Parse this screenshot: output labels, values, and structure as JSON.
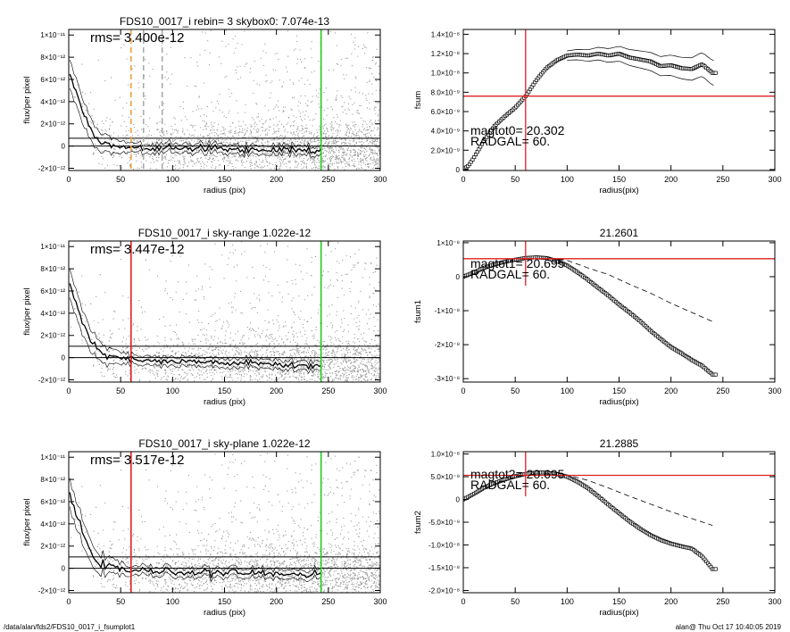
{
  "footer": {
    "path": "/data/alan/fds2/FDS10_0017_i_fsumplot1",
    "stamp": "alan@  Thu Oct 17 10:40:05 2019"
  },
  "chart_data": [
    {
      "id": "profile-rebin",
      "type": "scatter",
      "title": "FDS10_0017_i rebin= 3    skybox0:  7.074e-13",
      "annotation": "rms= 3.400e-12",
      "xlabel": "radius (pix)",
      "ylabel": "flux/per pixel",
      "xlim": [
        0,
        300
      ],
      "ylim": [
        -2.2e-12,
        1.05e-11
      ],
      "xticks": [
        0,
        50,
        100,
        150,
        200,
        250,
        300
      ],
      "xtick_labels": [
        "0",
        "50",
        "100",
        "150",
        "200",
        "250",
        "300"
      ],
      "yticks": [
        -2e-12,
        0,
        2e-12,
        4e-12,
        6e-12,
        8e-12,
        1e-11
      ],
      "ytick_labels": [
        "-2×10⁻¹²",
        "0",
        "2×10⁻¹²",
        "4×10⁻¹²",
        "6×10⁻¹²",
        "8×10⁻¹²",
        "1×10⁻¹¹"
      ],
      "hlines": [
        0,
        7.074e-13
      ],
      "vlines": [
        {
          "x": 60,
          "color": "#f0a040",
          "style": "dashed"
        },
        {
          "x": 72,
          "color": "#aaaaaa",
          "style": "dashed"
        },
        {
          "x": 90,
          "color": "#aaaaaa",
          "style": "dashed"
        },
        {
          "x": 243,
          "color": "#22cc22",
          "style": "solid"
        }
      ],
      "profile": {
        "x": [
          1,
          3,
          5,
          7,
          9,
          11,
          13,
          15,
          17,
          19,
          21,
          23,
          25,
          27,
          30,
          35,
          40,
          45,
          50,
          55,
          60,
          70,
          80,
          100,
          130,
          160,
          200,
          240
        ],
        "y": [
          6.5e-12,
          6e-12,
          5.5e-12,
          4.8e-12,
          4.4e-12,
          4e-12,
          3.2e-12,
          2.8e-12,
          2.4e-12,
          2e-12,
          1.6e-12,
          1.3e-12,
          1e-12,
          8e-13,
          5e-13,
          2e-13,
          1e-13,
          0,
          -1e-13,
          0,
          -1e-13,
          -2e-13,
          -2e-13,
          -2e-13,
          -2e-13,
          -3e-13,
          -3e-13,
          -4e-13
        ]
      }
    },
    {
      "id": "profile-sky-range",
      "type": "scatter",
      "title": "FDS10_0017_i sky-range  1.022e-12",
      "annotation": "rms= 3.447e-12",
      "xlabel": "radius (pix)",
      "ylabel": "flux/per pixel",
      "xlim": [
        0,
        300
      ],
      "ylim": [
        -2.2e-12,
        1.05e-11
      ],
      "xticks": [
        0,
        50,
        100,
        150,
        200,
        250,
        300
      ],
      "xtick_labels": [
        "0",
        "50",
        "100",
        "150",
        "200",
        "250",
        "300"
      ],
      "yticks": [
        -2e-12,
        0,
        2e-12,
        4e-12,
        6e-12,
        8e-12,
        1e-11
      ],
      "ytick_labels": [
        "-2×10⁻¹²",
        "0",
        "2×10⁻¹²",
        "4×10⁻¹²",
        "6×10⁻¹²",
        "8×10⁻¹²",
        "1×10⁻¹¹"
      ],
      "hlines": [
        0,
        1.022e-12
      ],
      "vlines": [
        {
          "x": 60,
          "color": "#e02020",
          "style": "solid"
        },
        {
          "x": 243,
          "color": "#22cc22",
          "style": "solid"
        }
      ],
      "profile": {
        "x": [
          1,
          3,
          5,
          7,
          9,
          11,
          13,
          15,
          17,
          19,
          21,
          23,
          25,
          27,
          30,
          35,
          40,
          45,
          50,
          55,
          60,
          70,
          80,
          100,
          130,
          160,
          200,
          240
        ],
        "y": [
          6.5e-12,
          6e-12,
          5.5e-12,
          4.8e-12,
          4.4e-12,
          4e-12,
          3.2e-12,
          2.8e-12,
          2.4e-12,
          2e-12,
          1.6e-12,
          1.3e-12,
          1e-12,
          8e-13,
          5e-13,
          2e-13,
          1e-13,
          0,
          -1e-13,
          -1e-13,
          -2e-13,
          -3e-13,
          -3e-13,
          -4e-13,
          -4e-13,
          -5e-13,
          -6e-13,
          -8e-13
        ]
      }
    },
    {
      "id": "profile-sky-plane",
      "type": "scatter",
      "title": "FDS10_0017_i sky-plane  1.022e-12",
      "annotation": "rms= 3.517e-12",
      "xlabel": "radius (pix)",
      "ylabel": "flux/per pixel",
      "xlim": [
        0,
        300
      ],
      "ylim": [
        -2.2e-12,
        1.05e-11
      ],
      "xticks": [
        0,
        50,
        100,
        150,
        200,
        250,
        300
      ],
      "xtick_labels": [
        "0",
        "50",
        "100",
        "150",
        "200",
        "250",
        "300"
      ],
      "yticks": [
        -2e-12,
        0,
        2e-12,
        4e-12,
        6e-12,
        8e-12,
        1e-11
      ],
      "ytick_labels": [
        "-2×10⁻¹²",
        "0",
        "2×10⁻¹²",
        "4×10⁻¹²",
        "6×10⁻¹²",
        "8×10⁻¹²",
        "1×10⁻¹¹"
      ],
      "hlines": [
        0,
        1.022e-12
      ],
      "vlines": [
        {
          "x": 60,
          "color": "#e02020",
          "style": "solid"
        },
        {
          "x": 243,
          "color": "#22cc22",
          "style": "solid"
        }
      ],
      "profile": {
        "x": [
          1,
          3,
          5,
          7,
          9,
          11,
          13,
          15,
          17,
          19,
          21,
          23,
          25,
          27,
          30,
          35,
          40,
          45,
          50,
          55,
          60,
          70,
          80,
          100,
          130,
          160,
          200,
          240
        ],
        "y": [
          6.5e-12,
          6e-12,
          5.5e-12,
          4.8e-12,
          4.4e-12,
          4e-12,
          3.2e-12,
          2.8e-12,
          2.4e-12,
          2e-12,
          1.6e-12,
          1.3e-12,
          1e-12,
          8e-13,
          5e-13,
          2e-13,
          1e-13,
          0,
          -1e-13,
          -1e-13,
          -2e-13,
          -2e-13,
          -3e-13,
          -3e-13,
          -4e-13,
          -4e-13,
          -5e-13,
          -5e-13
        ]
      }
    },
    {
      "id": "curve-fsum",
      "type": "line",
      "title": "",
      "annotations": [
        "magtot0=  20.302",
        "RADGAL=     60."
      ],
      "xlabel": "radius(pix)",
      "ylabel": "fsum",
      "xlim": [
        0,
        300
      ],
      "ylim": [
        -1e-10,
        1.45e-08
      ],
      "xticks": [
        0,
        50,
        100,
        150,
        200,
        250,
        300
      ],
      "xtick_labels": [
        "0",
        "50",
        "100",
        "150",
        "200",
        "250",
        "300"
      ],
      "yticks": [
        0,
        2e-09,
        4e-09,
        6e-09,
        8e-09,
        1e-08,
        1.2e-08,
        1.4e-08
      ],
      "ytick_labels": [
        "0",
        "2.0×10⁻⁹",
        "4.0×10⁻⁹",
        "6.0×10⁻⁹",
        "8.0×10⁻⁹",
        "1.0×10⁻⁸",
        "1.2×10⁻⁸",
        "1.4×10⁻⁸"
      ],
      "hline": 7.6e-09,
      "vline": 60,
      "curve": {
        "x": [
          0,
          5,
          10,
          20,
          30,
          40,
          50,
          60,
          70,
          80,
          90,
          100,
          110,
          120,
          130,
          140,
          150,
          160,
          170,
          180,
          190,
          200,
          210,
          220,
          230,
          240
        ],
        "y": [
          0,
          4e-10,
          1.2e-09,
          3e-09,
          4.5e-09,
          5.5e-09,
          6.4e-09,
          7.6e-09,
          9.2e-09,
          1.05e-08,
          1.13e-08,
          1.18e-08,
          1.19e-08,
          1.18e-08,
          1.2e-08,
          1.18e-08,
          1.2e-08,
          1.16e-08,
          1.14e-08,
          1.12e-08,
          1.07e-08,
          1.08e-08,
          1.05e-08,
          1.04e-08,
          1.09e-08,
          1e-08
        ]
      },
      "envelope_spread": 8e-10
    },
    {
      "id": "curve-fsum1",
      "type": "line",
      "title": "21.2601",
      "annotations": [
        "magtot1=  20.695",
        "RADGAL=     60."
      ],
      "xlabel": "radius(pix)",
      "ylabel": "fsum1",
      "xlim": [
        0,
        300
      ],
      "ylim": [
        -3.1e-08,
        1.05e-08
      ],
      "xticks": [
        0,
        50,
        100,
        150,
        200,
        250,
        300
      ],
      "xtick_labels": [
        "0",
        "50",
        "100",
        "150",
        "200",
        "250",
        "300"
      ],
      "yticks": [
        -3e-08,
        -2e-08,
        -1e-08,
        0,
        1e-08
      ],
      "ytick_labels": [
        "-3×10⁻⁸",
        "-2×10⁻⁸",
        "-1×10⁻⁸",
        "0",
        "1×10⁻⁸"
      ],
      "hline": 5.3e-09,
      "vline": 60,
      "curve": {
        "x": [
          0,
          10,
          20,
          30,
          40,
          50,
          60,
          70,
          80,
          90,
          100,
          110,
          120,
          130,
          140,
          150,
          160,
          170,
          180,
          190,
          200,
          210,
          220,
          230,
          240
        ],
        "y": [
          0,
          1.2e-09,
          2.6e-09,
          3.6e-09,
          4.4e-09,
          5e-09,
          5.5e-09,
          5.7e-09,
          5.5e-09,
          4.6e-09,
          3.3e-09,
          1.3e-09,
          -9e-10,
          -3.3e-09,
          -5.6e-09,
          -8.2e-09,
          -1.05e-08,
          -1.3e-08,
          -1.58e-08,
          -1.83e-08,
          -2.07e-08,
          -2.25e-08,
          -2.45e-08,
          -2.62e-08,
          -2.88e-08
        ]
      },
      "dashed": {
        "x": [
          0,
          20,
          40,
          60,
          80,
          100,
          120,
          140,
          160,
          180,
          200,
          220,
          240
        ],
        "y": [
          0,
          2.6e-09,
          4.4e-09,
          5.5e-09,
          5.6e-09,
          4.8e-09,
          2.6e-09,
          6e-10,
          -2.2e-09,
          -4.8e-09,
          -7.8e-09,
          -1.05e-08,
          -1.32e-08
        ]
      }
    },
    {
      "id": "curve-fsum2",
      "type": "line",
      "title": "21.2885",
      "annotations": [
        "magtot2=  20.695",
        "RADGAL=     60."
      ],
      "xlabel": "radius(pix)",
      "ylabel": "fsum2",
      "xlim": [
        0,
        300
      ],
      "ylim": [
        -2.05e-08,
        1.05e-08
      ],
      "xticks": [
        0,
        50,
        100,
        150,
        200,
        250,
        300
      ],
      "xtick_labels": [
        "0",
        "50",
        "100",
        "150",
        "200",
        "250",
        "300"
      ],
      "yticks": [
        -2e-08,
        -1.5e-08,
        -1e-08,
        -5e-09,
        0,
        5e-09,
        1e-08
      ],
      "ytick_labels": [
        "-2.0×10⁻⁸",
        "-1.5×10⁻⁸",
        "-1.0×10⁻⁸",
        "-5.0×10⁻⁹",
        "0",
        "5.0×10⁻⁹",
        "1.0×10⁻⁸"
      ],
      "hline": 5.3e-09,
      "vline": 60,
      "curve": {
        "x": [
          0,
          10,
          20,
          30,
          40,
          50,
          60,
          70,
          80,
          90,
          100,
          110,
          120,
          130,
          140,
          150,
          160,
          170,
          180,
          190,
          200,
          210,
          220,
          230,
          240
        ],
        "y": [
          0,
          1.2e-09,
          2.6e-09,
          3.6e-09,
          4.4e-09,
          5.1e-09,
          5.6e-09,
          5.9e-09,
          5.9e-09,
          5.6e-09,
          5e-09,
          3.9e-09,
          2.5e-09,
          7e-10,
          -1.2e-09,
          -3e-09,
          -4.8e-09,
          -6.4e-09,
          -7.8e-09,
          -8.9e-09,
          -9.7e-09,
          -1.03e-08,
          -1.08e-08,
          -1.25e-08,
          -1.53e-08
        ]
      },
      "dashed": {
        "x": [
          0,
          20,
          40,
          60,
          80,
          100,
          120,
          140,
          160,
          180,
          200,
          220,
          240
        ],
        "y": [
          0,
          2.6e-09,
          4.5e-09,
          5.6e-09,
          5.8e-09,
          5.4e-09,
          4.2e-09,
          2.5e-09,
          7e-10,
          -1e-09,
          -2.7e-09,
          -4.2e-09,
          -5.7e-09
        ]
      }
    }
  ]
}
